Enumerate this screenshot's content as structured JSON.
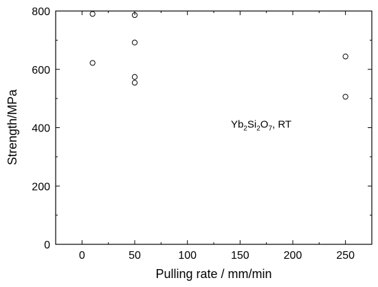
{
  "chart_data": {
    "type": "scatter",
    "title": "",
    "xlabel": "Pulling rate / mm/min",
    "ylabel": "Strength/MPa",
    "xlim": [
      -25,
      275
    ],
    "ylim": [
      0,
      800
    ],
    "xticks": [
      0,
      50,
      100,
      150,
      200,
      250
    ],
    "yticks": [
      0,
      200,
      400,
      600,
      800
    ],
    "grid": false,
    "marker": "open-circle",
    "colors": {
      "marker": "#000000",
      "axis": "#000000"
    },
    "series": [
      {
        "x": [
          10,
          10,
          50,
          50,
          50,
          50,
          250,
          250
        ],
        "y": [
          790,
          622,
          786,
          692,
          574,
          554,
          644,
          506
        ]
      }
    ],
    "annotation": {
      "parts": [
        {
          "t": "Yb",
          "sub": false
        },
        {
          "t": "2",
          "sub": true
        },
        {
          "t": "Si",
          "sub": false
        },
        {
          "t": "2",
          "sub": true
        },
        {
          "t": "O",
          "sub": false
        },
        {
          "t": "7",
          "sub": true
        },
        {
          "t": ", RT",
          "sub": false
        }
      ],
      "at": [
        170,
        400
      ]
    }
  }
}
